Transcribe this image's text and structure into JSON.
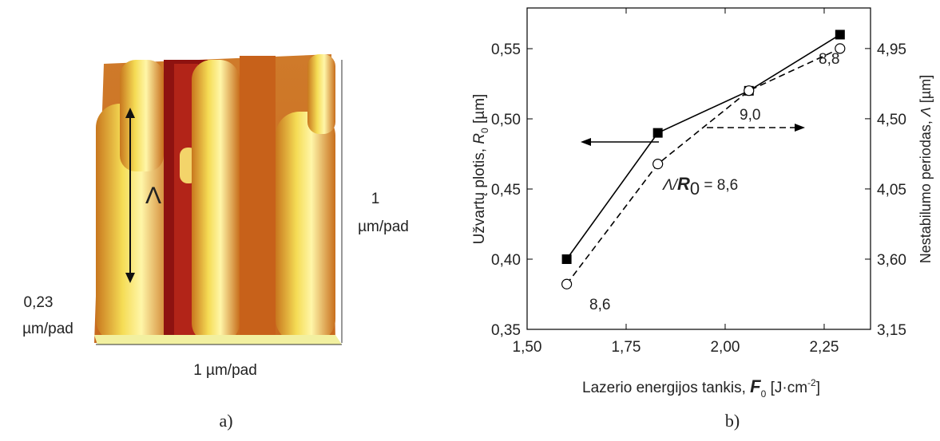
{
  "image_panel": {
    "lambda_label": "Λ",
    "z_scale": [
      "1",
      "µm/pad"
    ],
    "height_scale": [
      "0,23",
      "µm/pad"
    ],
    "x_scale": "1 µm/pad",
    "caption": "a)"
  },
  "chart_data": {
    "type": "line",
    "caption": "b)",
    "xlabel": [
      "Lazerio energijos tankis, ",
      "F",
      "0",
      " [J·cm",
      "-2",
      "]"
    ],
    "ylabel": [
      "Užvartų plotis, ",
      "R",
      "0",
      " [µm]"
    ],
    "y2label": [
      "Nestabilumo periodas, ",
      "Λ",
      " [µm]"
    ],
    "x": [
      1.6,
      1.83,
      2.06,
      2.29
    ],
    "series": [
      {
        "color": "#000000",
        "values": [
          0.4,
          0.49,
          0.52,
          0.56
        ]
      },
      {
        "color": "#000000",
        "axis": "y2",
        "values": [
          3.44,
          4.21,
          4.68,
          4.95
        ]
      }
    ],
    "xlim": [
      1.5,
      2.367
    ],
    "ylim": [
      0.35,
      0.579
    ],
    "y2lim": [
      3.15,
      5.21
    ],
    "xticks": [
      {
        "value": 1.5,
        "label": "1,50"
      },
      {
        "value": 1.75,
        "label": "1,75"
      },
      {
        "value": 2.0,
        "label": "2,00"
      },
      {
        "value": 2.25,
        "label": "2,25"
      }
    ],
    "yticks": [
      {
        "value": 0.35,
        "label": "0,35"
      },
      {
        "value": 0.4,
        "label": "0,40"
      },
      {
        "value": 0.45,
        "label": "0,45"
      },
      {
        "value": 0.5,
        "label": "0,50"
      },
      {
        "value": 0.55,
        "label": "0,55"
      }
    ],
    "y2ticks": [
      {
        "value": 3.15,
        "label": "3,15"
      },
      {
        "value": 3.6,
        "label": "3,60"
      },
      {
        "value": 4.05,
        "label": "4,05"
      },
      {
        "value": 4.5,
        "label": "4,50"
      },
      {
        "value": 4.95,
        "label": "4,95"
      }
    ],
    "annotations": [
      "8,6",
      "9,0",
      "8,8"
    ],
    "ratio_label": [
      "Λ/",
      "R",
      "0",
      " = 8,6"
    ]
  }
}
